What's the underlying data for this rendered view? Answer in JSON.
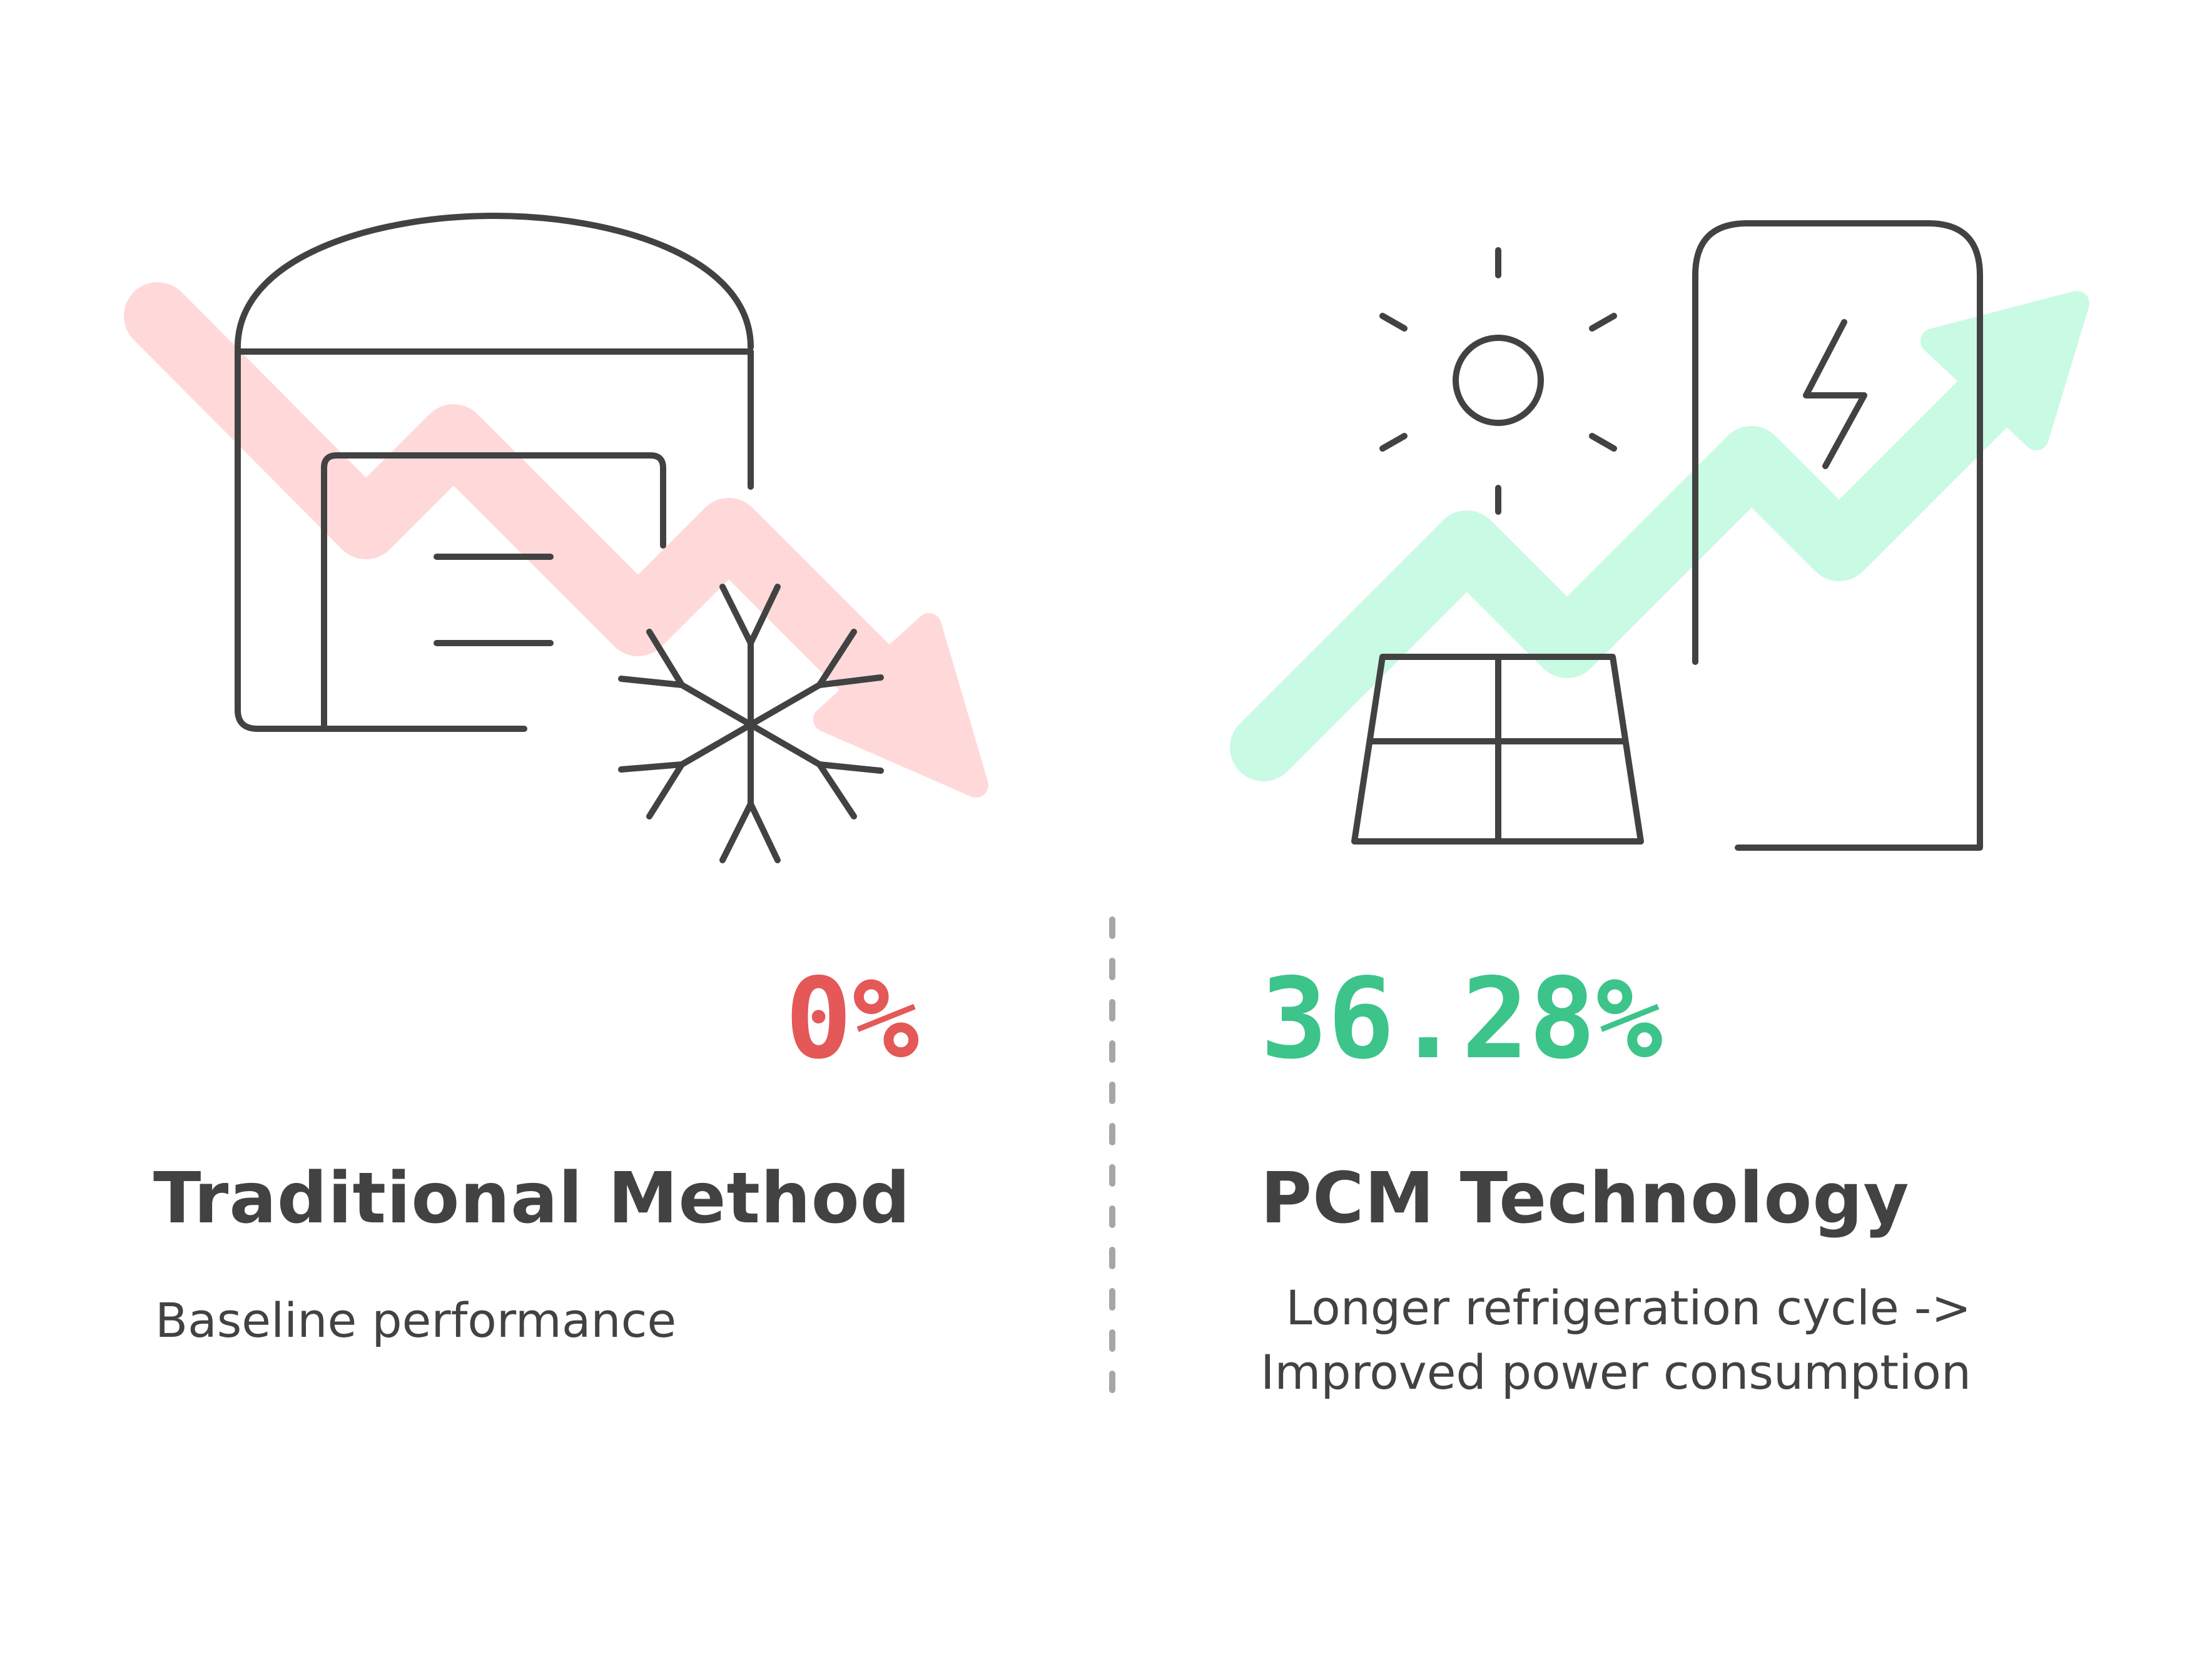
{
  "traditional": {
    "percent": "0%",
    "title": "Traditional Method",
    "description": "Baseline performance"
  },
  "pcm": {
    "percent": "36.28%",
    "title": "PCM Technology",
    "description_line1": "Longer refrigeration cycle ->",
    "description_line2": "Improved power consumption"
  },
  "colors": {
    "negative": "#e45858",
    "positive": "#3cc48a",
    "negative_arrow": "#ffd9d9",
    "positive_arrow": "#c9fae4",
    "ink": "#424242",
    "divider": "#a6a6a6"
  },
  "icons": {
    "left": [
      "down-trend-arrow-icon",
      "cold-storage-warehouse-icon",
      "snowflake-icon"
    ],
    "right": [
      "up-trend-arrow-icon",
      "sun-icon",
      "solar-panel-icon",
      "battery-charging-icon"
    ]
  }
}
